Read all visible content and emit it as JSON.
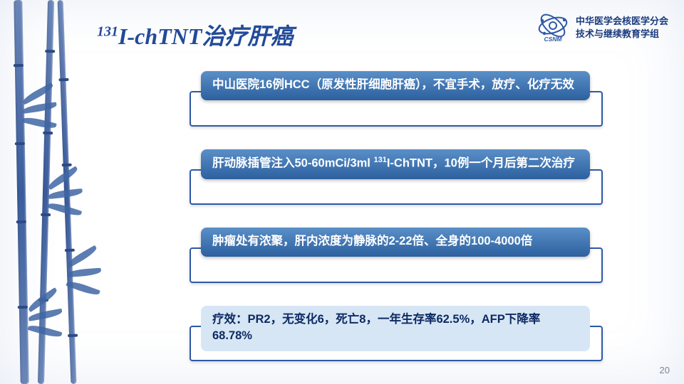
{
  "colors": {
    "title": "#224a9a",
    "org_text": "#1a3b7d",
    "box_border": "#2e59a6",
    "box_front_bg": "#3c75b7",
    "box_front_bg_grad_top": "#5a8fc8",
    "box_front_bg_grad_bottom": "#2c609f",
    "box_light_bg": "#d7e6f5",
    "box_light_text": "#0d2a63",
    "pagenum": "#7a8796",
    "bamboo_main": "#4066a3"
  },
  "org": {
    "line1": "中华医学会核医学分会",
    "line2": "技术与继续教育学组",
    "logo_label": "CSNM"
  },
  "title_html": "<sup>131</sup>I-chTNT治疗肝癌",
  "items": [
    {
      "style": "front",
      "html": "中山医院16例HCC（原发性肝细胞肝癌），不宜手术，放疗、化疗无效"
    },
    {
      "style": "front",
      "html": "肝动脉插管注入50-60mCi/3ml <sup>131</sup>I-ChTNT，10例一个月后第二次治疗"
    },
    {
      "style": "front",
      "html": "肿瘤处有浓聚，肝内浓度为静脉的2-22倍、全身的100-4000倍"
    },
    {
      "style": "light",
      "html": "疗效：PR2，无变化6，死亡8，一年生存率62.5%，AFP下降率68.78%"
    }
  ],
  "page_number": "20",
  "fontsize": {
    "title": 32,
    "body": 16.5,
    "org": 13,
    "pagenum": 13
  }
}
